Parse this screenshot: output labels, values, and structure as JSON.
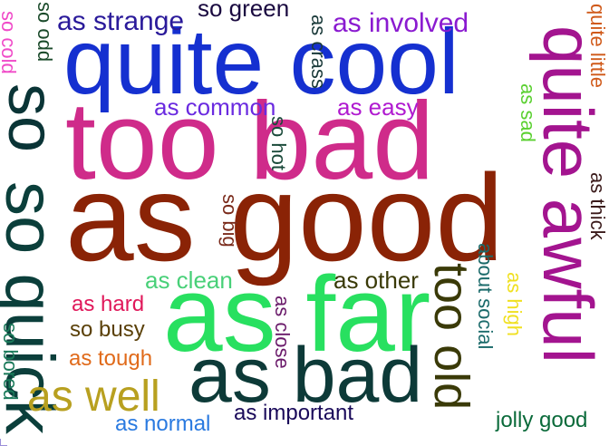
{
  "words": [
    {
      "text": "as good",
      "color": "#8a2306"
    },
    {
      "text": "too bad",
      "color": "#cf2b8a"
    },
    {
      "text": "quite cool",
      "color": "#1530d0"
    },
    {
      "text": "as far",
      "color": "#28e060"
    },
    {
      "text": "as bad",
      "color": "#0d3a38"
    },
    {
      "text": "so quick",
      "color": "#0b3f3b"
    },
    {
      "text": "quite awful",
      "color": "#a3148f"
    },
    {
      "text": "as well",
      "color": "#b8a020"
    },
    {
      "text": "too old",
      "color": "#3a3a08"
    },
    {
      "text": "so",
      "color": "#0a3436"
    },
    {
      "text": "as strange",
      "color": "#2a1a9a"
    },
    {
      "text": "so green",
      "color": "#1a0a40"
    },
    {
      "text": "as involved",
      "color": "#8a1ad0"
    },
    {
      "text": "as common",
      "color": "#6a2ae0"
    },
    {
      "text": "as easy",
      "color": "#b01ad0"
    },
    {
      "text": "as clean",
      "color": "#48d078"
    },
    {
      "text": "as other",
      "color": "#3a3a08"
    },
    {
      "text": "as hard",
      "color": "#e0185a"
    },
    {
      "text": "so busy",
      "color": "#5a4008"
    },
    {
      "text": "as tough",
      "color": "#e06a1a"
    },
    {
      "text": "as normal",
      "color": "#2a7ae0"
    },
    {
      "text": "as important",
      "color": "#1a0a5a"
    },
    {
      "text": "jolly good",
      "color": "#0a6a3a"
    },
    {
      "text": "so cold",
      "color": "#f04ac8"
    },
    {
      "text": "so odd",
      "color": "#1a4a2a"
    },
    {
      "text": "as crass",
      "color": "#1a3a3a"
    },
    {
      "text": "quite little",
      "color": "#d05a1a"
    },
    {
      "text": "as sad",
      "color": "#5ad030"
    },
    {
      "text": "so hot",
      "color": "#1a4a3a"
    },
    {
      "text": "as thick",
      "color": "#3a1a1a"
    },
    {
      "text": "so big",
      "color": "#7a2a1a"
    },
    {
      "text": "as close",
      "color": "#6a1a6a"
    },
    {
      "text": "about social",
      "color": "#1a6a6a"
    },
    {
      "text": "as high",
      "color": "#f0e020"
    },
    {
      "text": "so bored",
      "color": "#1a7a5a"
    }
  ]
}
